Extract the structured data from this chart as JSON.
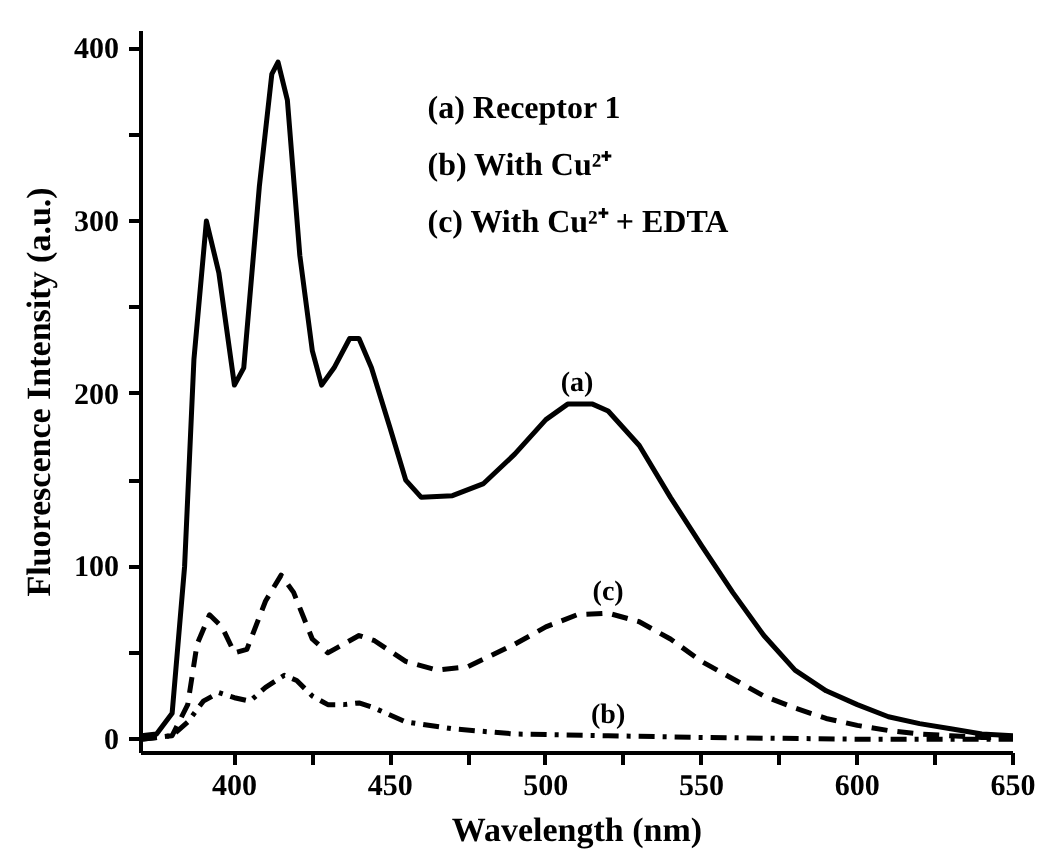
{
  "chart_data": {
    "type": "line",
    "xlabel": "Wavelength (nm)",
    "ylabel": "Fluorescence Intensity (a.u.)",
    "xlim": [
      370,
      650
    ],
    "ylim": [
      -8,
      410
    ],
    "xticks": [
      400,
      {
        "value": 425,
        "label": null
      },
      450,
      {
        "value": 475,
        "label": null
      },
      500,
      {
        "value": 525,
        "label": null
      },
      550,
      {
        "value": 575,
        "label": null
      },
      600,
      {
        "value": 625,
        "label": null
      },
      650
    ],
    "yticks": [
      0,
      {
        "value": 50,
        "label": null
      },
      100,
      {
        "value": 150,
        "label": null
      },
      200,
      {
        "value": 250,
        "label": null
      },
      300,
      {
        "value": 350,
        "label": null
      },
      400
    ],
    "grid": false,
    "marker": "none",
    "annotations": [
      "(a) Receptor 1",
      "(b) With Cu²⁺",
      "(c) With Cu²⁺ + EDTA",
      "(a)",
      "(b)",
      "(c)"
    ],
    "series": [
      {
        "color": "#000000",
        "line_style": "solid",
        "x": [
          370,
          375,
          380,
          384,
          387,
          391,
          395,
          400,
          403,
          408,
          412,
          414,
          417,
          421,
          425,
          428,
          432,
          437,
          440,
          444,
          450,
          455,
          460,
          470,
          480,
          490,
          500,
          507,
          515,
          520,
          530,
          540,
          550,
          560,
          570,
          580,
          590,
          600,
          610,
          620,
          630,
          640,
          650
        ],
        "values": [
          2,
          3,
          15,
          100,
          220,
          300,
          270,
          205,
          215,
          320,
          385,
          392,
          370,
          280,
          225,
          205,
          215,
          232,
          232,
          215,
          180,
          150,
          140,
          141,
          148,
          165,
          185,
          194,
          194,
          190,
          170,
          140,
          112,
          85,
          60,
          40,
          28,
          20,
          13,
          9,
          6,
          3,
          2
        ]
      },
      {
        "color": "#000000",
        "line_style": "dashdot",
        "x": [
          370,
          380,
          385,
          390,
          395,
          400,
          405,
          410,
          416,
          420,
          425,
          430,
          435,
          440,
          445,
          455,
          470,
          490,
          520,
          550,
          600,
          650
        ],
        "values": [
          0,
          2,
          10,
          22,
          27,
          24,
          22,
          30,
          37,
          34,
          25,
          20,
          20,
          21,
          18,
          10,
          6,
          3,
          2,
          1,
          0,
          0
        ]
      },
      {
        "color": "#000000",
        "line_style": "dashed",
        "x": [
          370,
          380,
          385,
          388,
          392,
          396,
          400,
          404,
          410,
          415,
          419,
          425,
          430,
          435,
          440,
          445,
          455,
          465,
          475,
          490,
          500,
          510,
          520,
          530,
          540,
          550,
          560,
          570,
          580,
          590,
          600,
          610,
          620,
          630,
          640,
          650
        ],
        "values": [
          0,
          2,
          20,
          55,
          72,
          65,
          50,
          52,
          80,
          95,
          85,
          58,
          50,
          55,
          60,
          57,
          45,
          40,
          42,
          55,
          65,
          72,
          73,
          68,
          58,
          45,
          35,
          25,
          18,
          12,
          8,
          5,
          3,
          2,
          1,
          1
        ]
      }
    ]
  }
}
